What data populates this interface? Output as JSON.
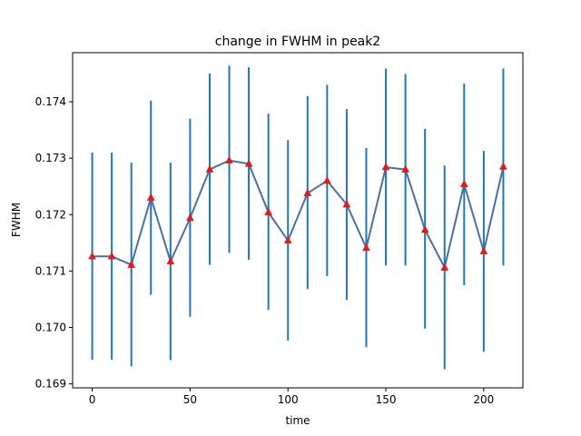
{
  "chart_data": {
    "type": "line",
    "title": "change in FWHM in peak2",
    "xlabel": "time",
    "ylabel": "FWHM",
    "xlim": [
      -10,
      220
    ],
    "ylim": [
      0.16893,
      0.17487
    ],
    "xticks": [
      0,
      50,
      100,
      150,
      200
    ],
    "xtick_labels": [
      "0",
      "50",
      "100",
      "150",
      "200"
    ],
    "yticks": [
      0.169,
      0.17,
      0.171,
      0.172,
      0.173,
      0.174
    ],
    "ytick_labels": [
      "0.169",
      "0.170",
      "0.171",
      "0.172",
      "0.173",
      "0.174"
    ],
    "grid": false,
    "x": [
      0,
      10,
      20,
      30,
      40,
      50,
      60,
      70,
      80,
      90,
      100,
      110,
      120,
      130,
      140,
      150,
      160,
      170,
      180,
      190,
      200,
      210
    ],
    "series": [
      {
        "values": [
          0.17126,
          0.17126,
          0.17111,
          0.1723,
          0.17117,
          0.17194,
          0.1728,
          0.17296,
          0.1729,
          0.17204,
          0.17154,
          0.17238,
          0.1726,
          0.17218,
          0.17141,
          0.17284,
          0.1728,
          0.17173,
          0.17106,
          0.17254,
          0.17135,
          0.17285
        ],
        "yerr_lower": [
          0.16943,
          0.16943,
          0.16931,
          0.17058,
          0.16942,
          0.17019,
          0.17111,
          0.17132,
          0.1712,
          0.17031,
          0.16977,
          0.17068,
          0.17091,
          0.17049,
          0.16965,
          0.1711,
          0.1711,
          0.16998,
          0.16926,
          0.17075,
          0.16957,
          0.1711
        ],
        "yerr_upper": [
          0.1731,
          0.1731,
          0.17292,
          0.17402,
          0.17292,
          0.1737,
          0.1745,
          0.17464,
          0.17461,
          0.17379,
          0.17332,
          0.1741,
          0.1743,
          0.17387,
          0.17318,
          0.17459,
          0.17449,
          0.17352,
          0.17287,
          0.17432,
          0.17313,
          0.17459
        ],
        "color": "#4a6fa5",
        "errorbar_color": "#1f77b4",
        "marker": "triangle",
        "marker_color": "#e31a1c"
      }
    ]
  }
}
